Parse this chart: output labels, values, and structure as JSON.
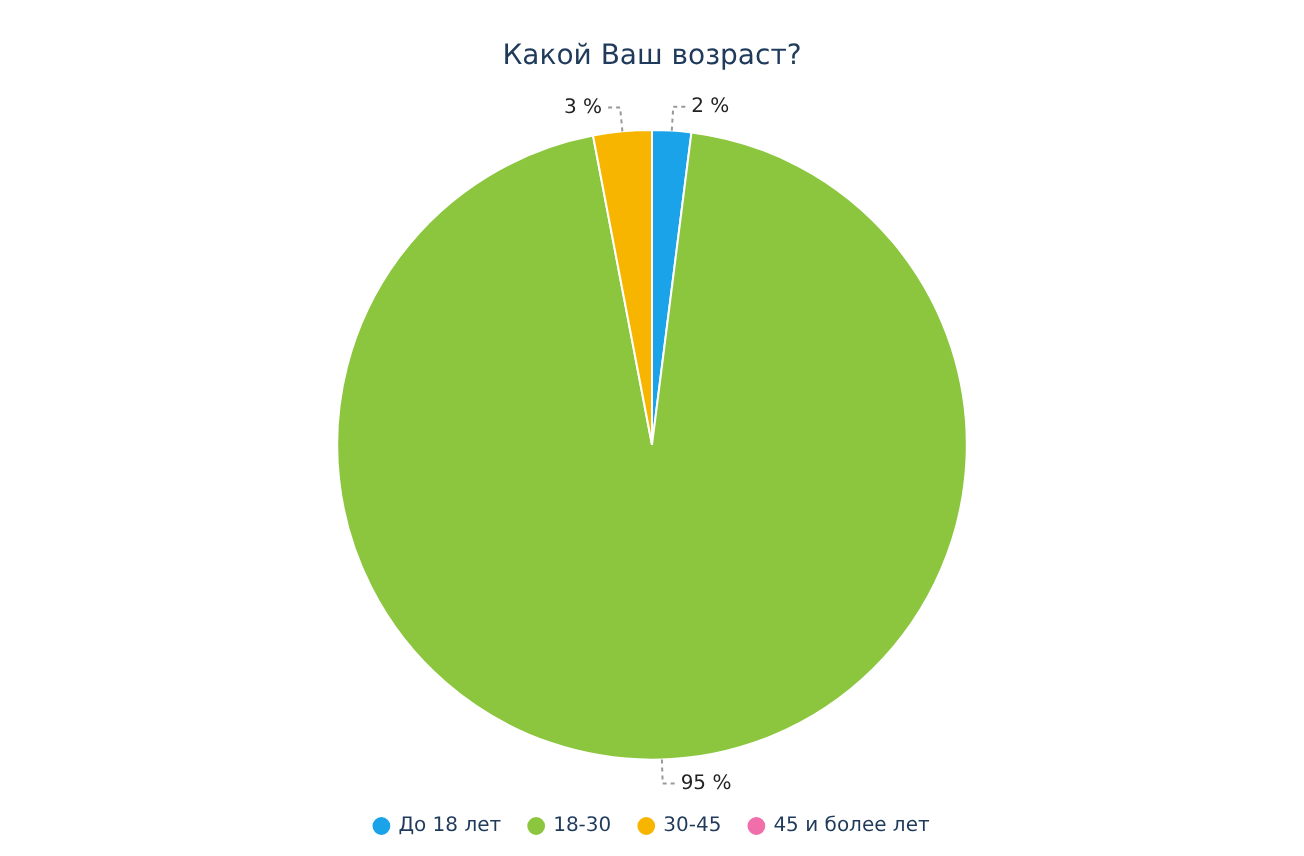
{
  "chart_data": {
    "type": "pie",
    "title": "Какой Ваш возраст?",
    "categories": [
      "До 18 лет",
      "18-30",
      "30-45",
      "45 и более лет"
    ],
    "values": [
      2,
      95,
      3,
      0
    ],
    "colors": [
      "#1aa3e8",
      "#8cc63f",
      "#f7b500",
      "#f06eaa"
    ],
    "value_labels": [
      "2 %",
      "95 %",
      "3 %",
      null
    ],
    "legend": "bottom"
  }
}
